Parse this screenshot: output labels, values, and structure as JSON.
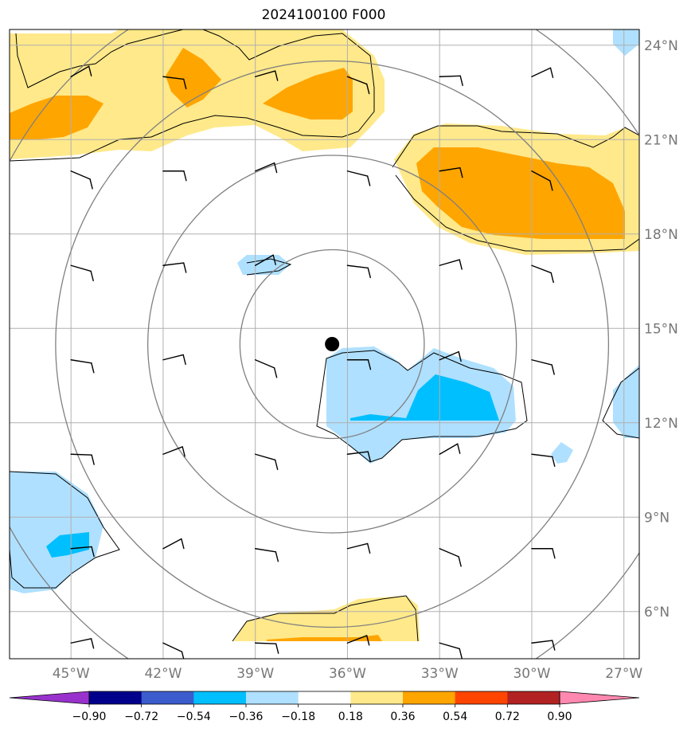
{
  "title": "2024100100 F000",
  "map": {
    "lon_range": [
      -47,
      -26.5
    ],
    "lat_range": [
      4.5,
      24.5
    ],
    "lon_ticks": [
      {
        "value": -45,
        "label": "45°W"
      },
      {
        "value": -42,
        "label": "42°W"
      },
      {
        "value": -39,
        "label": "39°W"
      },
      {
        "value": -36,
        "label": "36°W"
      },
      {
        "value": -33,
        "label": "33°W"
      },
      {
        "value": -30,
        "label": "30°W"
      },
      {
        "value": -27,
        "label": "27°W"
      }
    ],
    "lat_ticks": [
      {
        "value": 24,
        "label": "24°N"
      },
      {
        "value": 21,
        "label": "21°N"
      },
      {
        "value": 18,
        "label": "18°N"
      },
      {
        "value": 15,
        "label": "15°N"
      },
      {
        "value": 12,
        "label": "12°N"
      },
      {
        "value": 9,
        "label": "9°N"
      },
      {
        "value": 6,
        "label": "6°N"
      }
    ],
    "center_point": {
      "lon": -36.5,
      "lat": 14.5
    },
    "range_ring_radii_deg": [
      3,
      6,
      9,
      12
    ],
    "grid": true
  },
  "colorbar": {
    "ticks": [
      "−0.90",
      "−0.72",
      "−0.54",
      "−0.36",
      "−0.18",
      "0.18",
      "0.36",
      "0.54",
      "0.72",
      "0.90"
    ],
    "colors": [
      "#9932cc",
      "#00008b",
      "#3b5ccc",
      "#00bfff",
      "#afe0ff",
      "#ffffff",
      "#ffe98a",
      "#ffa500",
      "#ff4500",
      "#b22222",
      "#ff88b0"
    ]
  },
  "wind_barbs": {
    "lons": [
      -45,
      -42,
      -39,
      -36,
      -33,
      -30
    ],
    "lats": [
      23,
      20,
      17,
      14,
      11,
      8,
      5
    ]
  }
}
